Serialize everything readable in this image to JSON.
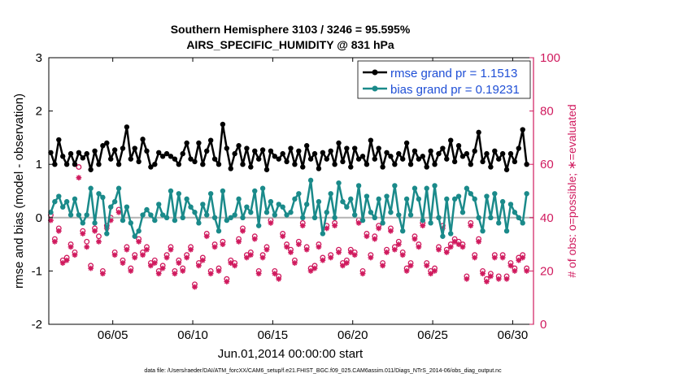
{
  "chart_data": {
    "type": "line",
    "title": "Southern Hemisphere 3103 / 3246 = 95.595%",
    "subtitle": "AIRS_SPECIFIC_HUMIDITY @ 831 hPa",
    "xlabel": "Jun.01,2014 00:00:00 start",
    "ylabel": "rmse and bias (model - observation)",
    "y2label": "# of obs: o=possible; ∗=evaluated",
    "xlim": [
      1,
      31.3
    ],
    "ylim": [
      -2,
      3
    ],
    "y2lim": [
      0,
      100
    ],
    "x_ticks": [
      5,
      10,
      15,
      20,
      25,
      30
    ],
    "x_tick_labels": [
      "06/05",
      "06/10",
      "06/15",
      "06/20",
      "06/25",
      "06/30"
    ],
    "y_ticks": [
      "-2",
      "-1",
      "0",
      "1",
      "2",
      "3"
    ],
    "y2_ticks": [
      "0",
      "20",
      "40",
      "60",
      "80",
      "100"
    ],
    "legend_position": "top-right",
    "zero_line": 0,
    "footnote": "data file: /Users/raeder/DAI/ATM_forcXX/CAM6_setup/f.e21.FHIST_BGC.f09_025.CAM6assim.011/Diags_NTrS_2014-06/obs_diag_output.nc",
    "series": [
      {
        "name": "rmse grand pr = 1.1513",
        "color": "#000000",
        "marker": "filled-circle",
        "x": [
          1.125,
          1.375,
          1.625,
          1.875,
          2.125,
          2.375,
          2.625,
          2.875,
          3.125,
          3.375,
          3.625,
          3.875,
          4.125,
          4.375,
          4.625,
          4.875,
          5.125,
          5.375,
          5.625,
          5.875,
          6.125,
          6.375,
          6.625,
          6.875,
          7.125,
          7.375,
          7.625,
          7.875,
          8.125,
          8.375,
          8.625,
          8.875,
          9.125,
          9.375,
          9.625,
          9.875,
          10.125,
          10.375,
          10.625,
          10.875,
          11.125,
          11.375,
          11.625,
          11.875,
          12.125,
          12.375,
          12.625,
          12.875,
          13.125,
          13.375,
          13.625,
          13.875,
          14.125,
          14.375,
          14.625,
          14.875,
          15.125,
          15.375,
          15.625,
          15.875,
          16.125,
          16.375,
          16.625,
          16.875,
          17.125,
          17.375,
          17.625,
          17.875,
          18.125,
          18.375,
          18.625,
          18.875,
          19.125,
          19.375,
          19.625,
          19.875,
          20.125,
          20.375,
          20.625,
          20.875,
          21.125,
          21.375,
          21.625,
          21.875,
          22.125,
          22.375,
          22.625,
          22.875,
          23.125,
          23.375,
          23.625,
          23.875,
          24.125,
          24.375,
          24.625,
          24.875,
          25.125,
          25.375,
          25.625,
          25.875,
          26.125,
          26.375,
          26.625,
          26.875,
          27.125,
          27.375,
          27.625,
          27.875,
          28.125,
          28.375,
          28.625,
          28.875,
          29.125,
          29.375,
          29.625,
          29.875,
          30.125,
          30.375,
          30.625,
          30.875
        ],
        "values": [
          1.22,
          1.0,
          1.46,
          1.15,
          1.0,
          1.2,
          1.0,
          1.22,
          1.12,
          1.2,
          0.9,
          1.25,
          1.0,
          1.35,
          1.4,
          1.1,
          1.27,
          1.0,
          1.3,
          1.7,
          1.1,
          1.3,
          1.05,
          1.47,
          1.25,
          0.95,
          1.0,
          1.22,
          1.15,
          1.2,
          1.15,
          1.1,
          1.0,
          1.2,
          1.4,
          1.1,
          1.05,
          1.4,
          1.0,
          1.25,
          1.45,
          1.1,
          1.0,
          1.75,
          1.3,
          0.92,
          1.2,
          1.35,
          1.0,
          1.3,
          0.95,
          1.25,
          1.1,
          1.27,
          0.9,
          1.25,
          1.15,
          1.1,
          1.2,
          1.05,
          1.3,
          1.0,
          1.25,
          0.95,
          1.35,
          1.1,
          1.2,
          0.92,
          1.22,
          1.1,
          1.25,
          1.0,
          1.4,
          1.05,
          1.3,
          0.95,
          1.3,
          1.1,
          1.15,
          1.0,
          1.45,
          1.1,
          1.3,
          0.95,
          1.22,
          1.15,
          1.0,
          1.2,
          1.1,
          1.4,
          1.0,
          1.25,
          1.1,
          1.15,
          0.95,
          1.25,
          1.0,
          1.2,
          1.3,
          1.1,
          1.45,
          1.05,
          1.35,
          1.15,
          1.2,
          1.0,
          1.25,
          1.6,
          1.05,
          1.2,
          0.95,
          1.25,
          1.1,
          1.2,
          0.9,
          1.2,
          1.05,
          1.3,
          1.65,
          1.0
        ]
      },
      {
        "name": "bias grand pr = 0.19231",
        "color": "#1a8a8a",
        "marker": "filled-circle",
        "x": [
          1.125,
          1.375,
          1.625,
          1.875,
          2.125,
          2.375,
          2.625,
          2.875,
          3.125,
          3.375,
          3.625,
          3.875,
          4.125,
          4.375,
          4.625,
          4.875,
          5.125,
          5.375,
          5.625,
          5.875,
          6.125,
          6.375,
          6.625,
          6.875,
          7.125,
          7.375,
          7.625,
          7.875,
          8.125,
          8.375,
          8.625,
          8.875,
          9.125,
          9.375,
          9.625,
          9.875,
          10.125,
          10.375,
          10.625,
          10.875,
          11.125,
          11.375,
          11.625,
          11.875,
          12.125,
          12.375,
          12.625,
          12.875,
          13.125,
          13.375,
          13.625,
          13.875,
          14.125,
          14.375,
          14.625,
          14.875,
          15.125,
          15.375,
          15.625,
          15.875,
          16.125,
          16.375,
          16.625,
          16.875,
          17.125,
          17.375,
          17.625,
          17.875,
          18.125,
          18.375,
          18.625,
          18.875,
          19.125,
          19.375,
          19.625,
          19.875,
          20.125,
          20.375,
          20.625,
          20.875,
          21.125,
          21.375,
          21.625,
          21.875,
          22.125,
          22.375,
          22.625,
          22.875,
          23.125,
          23.375,
          23.625,
          23.875,
          24.125,
          24.375,
          24.625,
          24.875,
          25.125,
          25.375,
          25.625,
          25.875,
          26.125,
          26.375,
          26.625,
          26.875,
          27.125,
          27.375,
          27.625,
          27.875,
          28.125,
          28.375,
          28.625,
          28.875,
          29.125,
          29.375,
          29.625,
          29.875,
          30.125,
          30.375,
          30.625,
          30.875
        ],
        "values": [
          0.1,
          0.3,
          0.4,
          0.2,
          0.3,
          0.05,
          0.35,
          0.05,
          -0.1,
          0.05,
          0.55,
          -0.1,
          0.45,
          0.38,
          -0.3,
          0.2,
          0.3,
          0.55,
          -0.05,
          0.2,
          -0.1,
          -0.35,
          -0.25,
          0.05,
          0.15,
          0.05,
          -0.05,
          0.25,
          0.05,
          0.0,
          0.5,
          -0.05,
          0.45,
          0.0,
          0.35,
          0.2,
          0.1,
          -0.1,
          0.25,
          0.05,
          0.45,
          0.0,
          -0.25,
          0.5,
          -0.05,
          0.0,
          0.05,
          0.35,
          0.0,
          0.2,
          0.1,
          0.5,
          -0.15,
          0.55,
          0.1,
          0.3,
          0.05,
          0.25,
          0.2,
          0.05,
          0.1,
          0.35,
          0.45,
          0.0,
          0.25,
          0.7,
          0.0,
          0.3,
          -0.3,
          0.1,
          0.45,
          0.0,
          0.65,
          0.3,
          0.2,
          0.35,
          0.05,
          0.6,
          -0.05,
          0.4,
          0.1,
          0.0,
          0.35,
          -0.1,
          0.4,
          0.1,
          0.6,
          0.05,
          -0.25,
          0.35,
          0.05,
          0.55,
          0.35,
          -0.05,
          0.55,
          -0.1,
          0.6,
          0.0,
          -0.35,
          0.35,
          -0.3,
          0.35,
          0.4,
          0.1,
          0.55,
          0.45,
          0.35,
          0.0,
          -0.25,
          0.4,
          0.0,
          0.45,
          -0.1,
          0.3,
          -0.25,
          0.25,
          0.1,
          0.0,
          -0.1,
          0.45
        ]
      }
    ],
    "obs_counts": {
      "axis": "right",
      "color": "#d01a5e",
      "possible": {
        "marker": "open-circle",
        "x": [
          1.125,
          1.375,
          1.625,
          1.875,
          2.125,
          2.375,
          2.625,
          2.875,
          3.125,
          3.375,
          3.625,
          3.875,
          4.125,
          4.375,
          4.625,
          4.875,
          5.125,
          5.375,
          5.625,
          5.875,
          6.125,
          6.375,
          6.625,
          6.875,
          7.125,
          7.375,
          7.625,
          7.875,
          8.125,
          8.375,
          8.625,
          8.875,
          9.125,
          9.375,
          9.625,
          9.875,
          10.125,
          10.375,
          10.625,
          10.875,
          11.125,
          11.375,
          11.625,
          11.875,
          12.125,
          12.375,
          12.625,
          12.875,
          13.125,
          13.375,
          13.625,
          13.875,
          14.125,
          14.375,
          14.625,
          14.875,
          15.125,
          15.375,
          15.625,
          15.875,
          16.125,
          16.375,
          16.625,
          16.875,
          17.125,
          17.375,
          17.625,
          17.875,
          18.125,
          18.375,
          18.625,
          18.875,
          19.125,
          19.375,
          19.625,
          19.875,
          20.125,
          20.375,
          20.625,
          20.875,
          21.125,
          21.375,
          21.625,
          21.875,
          22.125,
          22.375,
          22.625,
          22.875,
          23.125,
          23.375,
          23.625,
          23.875,
          24.125,
          24.375,
          24.625,
          24.875,
          25.125,
          25.375,
          25.625,
          25.875,
          26.125,
          26.375,
          26.625,
          26.875,
          27.125,
          27.375,
          27.625,
          27.875,
          28.125,
          28.375,
          28.625,
          28.875,
          29.125,
          29.375,
          29.625,
          29.875,
          30.125,
          30.375,
          30.625,
          30.875
        ],
        "values": [
          41,
          32,
          36,
          24,
          25,
          30,
          27,
          59,
          35,
          31,
          22,
          36,
          33,
          20,
          37,
          40,
          27,
          43,
          24,
          29,
          21,
          26,
          32,
          27,
          29,
          23,
          24,
          20,
          22,
          26,
          29,
          20,
          24,
          21,
          26,
          29,
          15,
          23,
          25,
          34,
          20,
          30,
          21,
          31,
          17,
          24,
          23,
          32,
          36,
          26,
          27,
          33,
          20,
          26,
          29,
          39,
          20,
          18,
          34,
          30,
          28,
          24,
          31,
          38,
          29,
          21,
          22,
          30,
          25,
          37,
          26,
          38,
          28,
          23,
          24,
          28,
          27,
          39,
          20,
          34,
          26,
          33,
          37,
          23,
          28,
          36,
          29,
          31,
          27,
          21,
          23,
          33,
          30,
          38,
          23,
          20,
          21,
          29,
          37,
          28,
          30,
          32,
          31,
          30,
          18,
          38,
          26,
          32,
          20,
          17,
          19,
          26,
          18,
          26,
          18,
          23,
          21,
          25,
          26,
          21
        ]
      },
      "evaluated": {
        "marker": "asterisk",
        "x": [
          1.125,
          1.375,
          1.625,
          1.875,
          2.125,
          2.375,
          2.625,
          2.875,
          3.125,
          3.375,
          3.625,
          3.875,
          4.125,
          4.375,
          4.625,
          4.875,
          5.125,
          5.375,
          5.625,
          5.875,
          6.125,
          6.375,
          6.625,
          6.875,
          7.125,
          7.375,
          7.625,
          7.875,
          8.125,
          8.375,
          8.625,
          8.875,
          9.125,
          9.375,
          9.625,
          9.875,
          10.125,
          10.375,
          10.625,
          10.875,
          11.125,
          11.375,
          11.625,
          11.875,
          12.125,
          12.375,
          12.625,
          12.875,
          13.125,
          13.375,
          13.625,
          13.875,
          14.125,
          14.375,
          14.625,
          14.875,
          15.125,
          15.375,
          15.625,
          15.875,
          16.125,
          16.375,
          16.625,
          16.875,
          17.125,
          17.375,
          17.625,
          17.875,
          18.125,
          18.375,
          18.625,
          18.875,
          19.125,
          19.375,
          19.625,
          19.875,
          20.125,
          20.375,
          20.625,
          20.875,
          21.125,
          21.375,
          21.625,
          21.875,
          22.125,
          22.375,
          22.625,
          22.875,
          23.125,
          23.375,
          23.625,
          23.875,
          24.125,
          24.375,
          24.625,
          24.875,
          25.125,
          25.375,
          25.625,
          25.875,
          26.125,
          26.375,
          26.625,
          26.875,
          27.125,
          27.375,
          27.625,
          27.875,
          28.125,
          28.375,
          28.625,
          28.875,
          29.125,
          29.375,
          29.625,
          29.875,
          30.125,
          30.375,
          30.625,
          30.875
        ],
        "values": [
          39,
          31,
          35,
          23,
          24,
          29,
          26,
          55,
          34,
          29,
          21,
          35,
          31,
          19,
          36,
          39,
          26,
          42,
          23,
          28,
          20,
          25,
          31,
          26,
          28,
          22,
          23,
          19,
          21,
          25,
          28,
          19,
          23,
          20,
          25,
          28,
          14,
          22,
          24,
          33,
          19,
          29,
          20,
          30,
          16,
          23,
          22,
          31,
          35,
          25,
          26,
          32,
          19,
          25,
          28,
          38,
          19,
          17,
          33,
          29,
          27,
          23,
          30,
          37,
          28,
          20,
          21,
          29,
          24,
          36,
          25,
          37,
          27,
          22,
          23,
          27,
          26,
          38,
          19,
          33,
          25,
          32,
          36,
          22,
          27,
          35,
          28,
          30,
          26,
          20,
          22,
          32,
          29,
          37,
          22,
          19,
          20,
          28,
          36,
          27,
          29,
          31,
          30,
          29,
          17,
          37,
          25,
          31,
          19,
          16,
          18,
          25,
          17,
          25,
          17,
          22,
          20,
          24,
          25,
          20
        ]
      }
    }
  }
}
